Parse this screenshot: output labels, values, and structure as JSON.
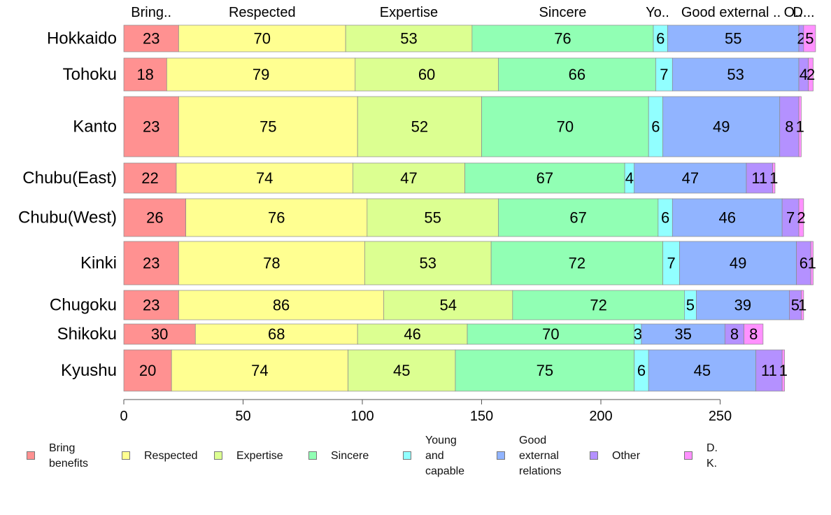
{
  "chart_data": {
    "type": "bar",
    "orientation": "horizontal",
    "stacked": true,
    "title": "",
    "xlabel": "",
    "ylabel": "",
    "xlim": [
      0,
      290
    ],
    "xticks": [
      0,
      50,
      100,
      150,
      200,
      250
    ],
    "grid": false,
    "legend_position": "bottom",
    "categories": [
      "Hokkaido",
      "Tohoku",
      "Kanto",
      "Chubu(East)",
      "Chubu(West)",
      "Kinki",
      "Chugoku",
      "Shikoku",
      "Kyushu"
    ],
    "category_relative_sample_size": [
      0.55,
      0.62,
      1.1,
      0.55,
      0.82,
      0.9,
      0.6,
      0.4,
      0.95
    ],
    "top_labels": [
      "Bring..",
      "Respected",
      "Expertise",
      "Sincere",
      "Yo..",
      "Good external ..",
      "O..",
      "D..."
    ],
    "series": [
      {
        "name": "Bring\nbenefits",
        "color": "#ff9191",
        "values": [
          23,
          18,
          23,
          22,
          26,
          23,
          23,
          30,
          20
        ]
      },
      {
        "name": "Respected",
        "color": "#ffff91",
        "values": [
          70,
          79,
          75,
          74,
          76,
          78,
          86,
          68,
          74
        ]
      },
      {
        "name": "Expertise",
        "color": "#dcff91",
        "values": [
          53,
          60,
          52,
          47,
          55,
          53,
          54,
          46,
          45
        ]
      },
      {
        "name": "Sincere",
        "color": "#91ffb4",
        "values": [
          76,
          66,
          70,
          67,
          67,
          72,
          72,
          70,
          75
        ]
      },
      {
        "name": "Young and\ncapable",
        "color": "#91ffff",
        "values": [
          6,
          7,
          6,
          4,
          6,
          7,
          5,
          3,
          6
        ]
      },
      {
        "name": "Good\nexternal\nrelations",
        "color": "#91b4ff",
        "values": [
          55,
          53,
          49,
          47,
          46,
          49,
          39,
          35,
          45
        ]
      },
      {
        "name": "Other",
        "color": "#b491ff",
        "values": [
          2,
          4,
          8,
          11,
          7,
          6,
          5,
          8,
          11
        ]
      },
      {
        "name": "D. K.",
        "color": "#ff91ff",
        "values": [
          5,
          2,
          1,
          1,
          2,
          1,
          1,
          8,
          1
        ]
      }
    ]
  }
}
